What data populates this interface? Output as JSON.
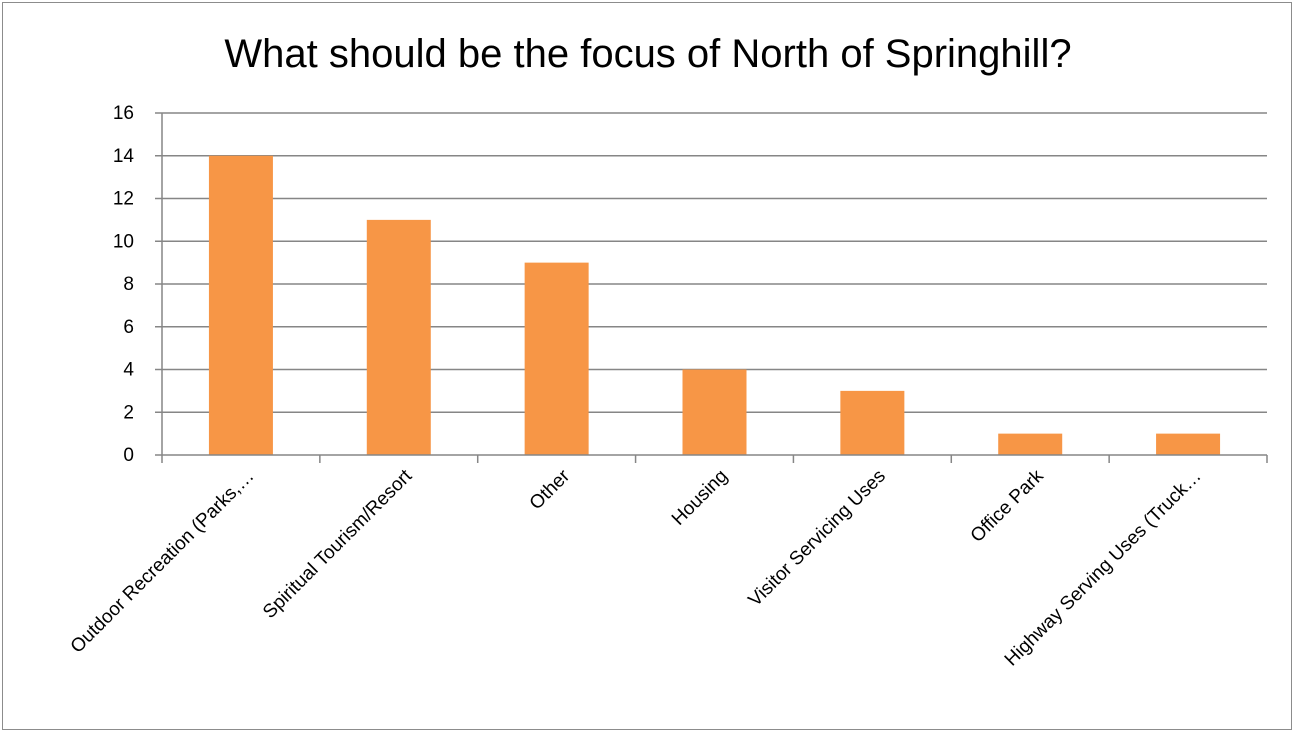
{
  "chart_data": {
    "type": "bar",
    "title": "What should be the focus of North of Springhill?",
    "xlabel": "",
    "ylabel": "",
    "categories": [
      "Outdoor Recreation (Parks,…",
      "Spiritual Tourism/Resort",
      "Other",
      "Housing",
      "Visitor Servicing Uses",
      "Office Park",
      "Highway Serving Uses (Truck…"
    ],
    "values": [
      14,
      11,
      9,
      4,
      3,
      1,
      1
    ],
    "ylim": [
      0,
      16
    ],
    "yticks": [
      "0",
      "2",
      "4",
      "6",
      "8",
      "10",
      "12",
      "14",
      "16"
    ],
    "grid": true,
    "legend": "none",
    "bar_color": "#f79646",
    "gridline_color": "#868686"
  }
}
